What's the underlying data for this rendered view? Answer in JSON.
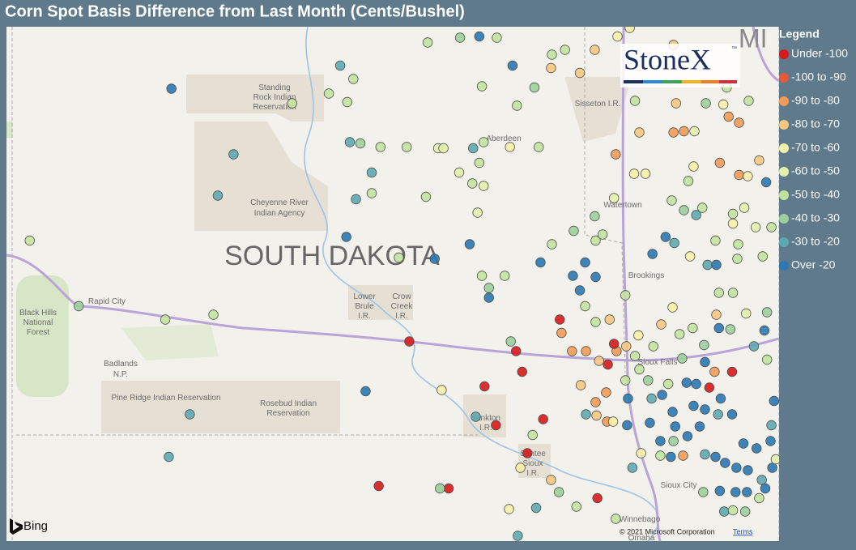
{
  "title": "Corn Spot Basis Difference from Last Month (Cents/Bushel)",
  "logo": {
    "text": "StoneX",
    "mark": "™"
  },
  "legend": {
    "title": "Legend",
    "items": [
      {
        "label": "Under -100",
        "color": "#d7191c"
      },
      {
        "label": "-100 to -90",
        "color": "#e8593a"
      },
      {
        "label": "-90 to -80",
        "color": "#f29a58"
      },
      {
        "label": "-80 to -70",
        "color": "#f7c67f"
      },
      {
        "label": "-70 to -60",
        "color": "#f8efa8"
      },
      {
        "label": "-60 to -50",
        "color": "#e3f1ac"
      },
      {
        "label": "-50 to -40",
        "color": "#c2e3a0"
      },
      {
        "label": "-40 to -30",
        "color": "#9dcf9c"
      },
      {
        "label": "-30 to -20",
        "color": "#5ea8b1"
      },
      {
        "label": "Over -20",
        "color": "#2b78b4"
      }
    ]
  },
  "map": {
    "state_label": "SOUTH DAKOTA",
    "neighbor_label": "MI",
    "labels": [
      [
        "Standing",
        "Rock Indian",
        "Reservation"
      ],
      [
        "Sisseton I.R."
      ],
      [
        "Aberdeen"
      ],
      [
        "Cheyenne River",
        "Indian Agency"
      ],
      [
        "Watertown"
      ],
      [
        "Brookings"
      ],
      [
        "Rapid City"
      ],
      [
        "Black Hills",
        "National",
        "Forest"
      ],
      [
        "Lower",
        "Brule",
        "I.R."
      ],
      [
        "Crow",
        "Creek",
        "I.R."
      ],
      [
        "Badlands",
        "N.P."
      ],
      [
        "Pine Ridge Indian Reservation"
      ],
      [
        "Rosebud Indian",
        "Reservation"
      ],
      [
        "Sioux Falls"
      ],
      [
        "Yankton",
        "I.R."
      ],
      [
        "Santee",
        "Sioux",
        "I.R."
      ],
      [
        "Sioux City"
      ],
      [
        "Winnebago"
      ],
      [
        "Omaha"
      ]
    ],
    "attribution": {
      "provider": "Bing",
      "copyright": "© 2021 Microsoft Corporation",
      "terms": "Terms"
    },
    "points": [
      [
        -102.17,
        45.77,
        9
      ],
      [
        -101.46,
        45.23,
        8
      ],
      [
        -101.64,
        44.89,
        8
      ],
      [
        -103.79,
        44.52,
        6
      ],
      [
        -103.23,
        43.98,
        7
      ],
      [
        -102.24,
        43.87,
        6
      ],
      [
        -101.69,
        43.91,
        6
      ],
      [
        -101.96,
        43.09,
        8
      ],
      [
        -102.2,
        42.74,
        8
      ],
      [
        -100.24,
        45.96,
        8
      ],
      [
        -100.09,
        45.85,
        6
      ],
      [
        -100.37,
        45.73,
        6
      ],
      [
        -100.16,
        45.66,
        6
      ],
      [
        -100.79,
        45.65,
        6
      ],
      [
        -100.13,
        45.33,
        8
      ],
      [
        -100.01,
        45.32,
        7
      ],
      [
        -99.78,
        45.29,
        6
      ],
      [
        -99.48,
        45.29,
        6
      ],
      [
        -99.88,
        45.08,
        8
      ],
      [
        -99.88,
        44.91,
        6
      ],
      [
        -100.06,
        44.86,
        8
      ],
      [
        -100.17,
        44.55,
        9
      ],
      [
        -99.57,
        44.38,
        6
      ],
      [
        -99.16,
        44.37,
        9
      ],
      [
        -99.24,
        46.15,
        6
      ],
      [
        -98.87,
        46.19,
        7
      ],
      [
        -98.65,
        46.2,
        9
      ],
      [
        -98.45,
        46.19,
        6
      ],
      [
        -98.27,
        45.96,
        9
      ],
      [
        -98.62,
        45.79,
        6
      ],
      [
        -98.22,
        45.63,
        6
      ],
      [
        -98.02,
        45.78,
        7
      ],
      [
        -99.12,
        45.28,
        5
      ],
      [
        -99.06,
        45.28,
        5
      ],
      [
        -98.72,
        45.28,
        8
      ],
      [
        -98.6,
        45.33,
        6
      ],
      [
        -98.3,
        45.29,
        4
      ],
      [
        -97.97,
        45.29,
        6
      ],
      [
        -98.65,
        45.16,
        6
      ],
      [
        -98.88,
        45.08,
        5
      ],
      [
        -98.73,
        44.99,
        6
      ],
      [
        -98.6,
        44.97,
        5
      ],
      [
        -99.26,
        44.88,
        6
      ],
      [
        -98.67,
        44.75,
        5
      ],
      [
        -98.76,
        44.49,
        9
      ],
      [
        -98.62,
        44.23,
        6
      ],
      [
        -98.36,
        44.23,
        6
      ],
      [
        -98.54,
        44.13,
        7
      ],
      [
        -98.54,
        44.05,
        9
      ],
      [
        -99.45,
        43.69,
        0
      ],
      [
        -99.95,
        43.28,
        9
      ],
      [
        -99.08,
        43.29,
        4
      ],
      [
        -98.59,
        43.32,
        0
      ],
      [
        -98.16,
        43.44,
        0
      ],
      [
        -98.23,
        43.61,
        0
      ],
      [
        -98.29,
        43.69,
        7
      ],
      [
        -98.46,
        43.0,
        0
      ],
      [
        -98.69,
        43.07,
        8
      ],
      [
        -98.04,
        42.92,
        6
      ],
      [
        -97.92,
        43.05,
        0
      ],
      [
        -98.1,
        42.77,
        0
      ],
      [
        -99.8,
        42.5,
        0
      ],
      [
        -99.0,
        42.48,
        0
      ],
      [
        -99.1,
        42.48,
        7
      ],
      [
        -98.18,
        42.65,
        4
      ],
      [
        -97.83,
        42.55,
        3
      ],
      [
        -97.74,
        42.45,
        7
      ],
      [
        -98.31,
        42.31,
        4
      ],
      [
        -98.0,
        42.32,
        8
      ],
      [
        -97.73,
        43.87,
        0
      ],
      [
        -97.71,
        43.76,
        2
      ],
      [
        -97.59,
        43.61,
        2
      ],
      [
        -97.43,
        43.61,
        2
      ],
      [
        -97.28,
        43.53,
        3
      ],
      [
        -97.18,
        43.5,
        0
      ],
      [
        -97.08,
        43.61,
        2
      ],
      [
        -96.97,
        43.65,
        3
      ],
      [
        -97.11,
        43.67,
        0
      ],
      [
        -97.49,
        43.33,
        3
      ],
      [
        -97.32,
        43.19,
        2
      ],
      [
        -97.2,
        43.27,
        2
      ],
      [
        -97.31,
        43.08,
        3
      ],
      [
        -97.19,
        43.03,
        2
      ],
      [
        -97.43,
        43.09,
        8
      ],
      [
        -97.58,
        44.23,
        9
      ],
      [
        -97.5,
        44.11,
        9
      ],
      [
        -97.32,
        44.22,
        9
      ],
      [
        -97.44,
        44.34,
        9
      ],
      [
        -97.32,
        44.52,
        6
      ],
      [
        -97.24,
        44.57,
        6
      ],
      [
        -97.57,
        44.6,
        7
      ],
      [
        -97.33,
        44.72,
        7
      ],
      [
        -97.82,
        44.49,
        6
      ],
      [
        -97.95,
        44.34,
        9
      ],
      [
        -97.44,
        43.98,
        6
      ],
      [
        -97.32,
        43.85,
        6
      ],
      [
        -97.16,
        43.87,
        3
      ],
      [
        -96.98,
        44.07,
        6
      ],
      [
        -97.11,
        44.87,
        5
      ],
      [
        -97.09,
        45.23,
        2
      ],
      [
        -96.88,
        45.07,
        4
      ],
      [
        -96.75,
        45.07,
        4
      ],
      [
        -96.82,
        45.41,
        3
      ],
      [
        -96.87,
        45.67,
        6
      ],
      [
        -97.07,
        46.2,
        4
      ],
      [
        -97.33,
        46.09,
        3
      ],
      [
        -97.5,
        45.9,
        3
      ],
      [
        -97.83,
        45.94,
        3
      ],
      [
        -97.82,
        46.05,
        6
      ],
      [
        -97.67,
        46.09,
        6
      ],
      [
        -96.93,
        46.27,
        4
      ],
      [
        -96.43,
        46.13,
        3
      ],
      [
        -96.4,
        45.65,
        3
      ],
      [
        -96.43,
        45.41,
        2
      ],
      [
        -96.31,
        45.42,
        2
      ],
      [
        -96.19,
        45.42,
        5
      ],
      [
        -95.8,
        45.54,
        2
      ],
      [
        -95.68,
        45.49,
        2
      ],
      [
        -96.06,
        45.65,
        7
      ],
      [
        -95.86,
        45.64,
        4
      ],
      [
        -95.82,
        45.78,
        6
      ],
      [
        -95.57,
        45.67,
        6
      ],
      [
        -96.2,
        45.13,
        4
      ],
      [
        -95.9,
        45.16,
        2
      ],
      [
        -95.68,
        45.06,
        2
      ],
      [
        -95.58,
        45.05,
        4
      ],
      [
        -95.45,
        45.18,
        3
      ],
      [
        -95.37,
        45.0,
        9
      ],
      [
        -96.26,
        45.01,
        6
      ],
      [
        -96.45,
        44.85,
        6
      ],
      [
        -96.31,
        44.77,
        7
      ],
      [
        -96.17,
        44.73,
        8
      ],
      [
        -96.1,
        44.79,
        6
      ],
      [
        -95.95,
        44.52,
        6
      ],
      [
        -95.75,
        44.66,
        4
      ],
      [
        -95.62,
        44.79,
        5
      ],
      [
        -95.49,
        44.63,
        5
      ],
      [
        -95.31,
        44.63,
        6
      ],
      [
        -95.41,
        44.39,
        6
      ],
      [
        -95.69,
        44.49,
        6
      ],
      [
        -95.75,
        44.74,
        6
      ],
      [
        -96.52,
        44.55,
        9
      ],
      [
        -96.42,
        44.5,
        8
      ],
      [
        -96.67,
        44.41,
        9
      ],
      [
        -96.24,
        44.39,
        4
      ],
      [
        -96.04,
        44.32,
        8
      ],
      [
        -95.94,
        44.32,
        9
      ],
      [
        -95.7,
        44.37,
        6
      ],
      [
        -95.91,
        44.09,
        6
      ],
      [
        -95.75,
        44.09,
        6
      ],
      [
        -95.6,
        43.92,
        5
      ],
      [
        -95.36,
        43.93,
        7
      ],
      [
        -95.94,
        43.91,
        3
      ],
      [
        -95.91,
        43.8,
        9
      ],
      [
        -95.78,
        43.79,
        7
      ],
      [
        -96.57,
        43.83,
        3
      ],
      [
        -96.44,
        43.97,
        4
      ],
      [
        -96.21,
        43.8,
        6
      ],
      [
        -96.08,
        43.66,
        7
      ],
      [
        -96.36,
        43.75,
        6
      ],
      [
        -96.07,
        43.52,
        9
      ],
      [
        -95.96,
        43.44,
        2
      ],
      [
        -95.76,
        43.44,
        0
      ],
      [
        -96.02,
        43.31,
        0
      ],
      [
        -96.17,
        43.34,
        9
      ],
      [
        -96.28,
        43.35,
        9
      ],
      [
        -96.56,
        43.25,
        9
      ],
      [
        -96.68,
        43.22,
        8
      ],
      [
        -96.95,
        43.22,
        9
      ],
      [
        -96.44,
        43.11,
        9
      ],
      [
        -96.2,
        43.16,
        9
      ],
      [
        -96.07,
        43.13,
        9
      ],
      [
        -95.92,
        43.09,
        8
      ],
      [
        -95.76,
        43.09,
        9
      ],
      [
        -95.89,
        43.22,
        9
      ],
      [
        -96.41,
        42.99,
        9
      ],
      [
        -96.7,
        43.02,
        9
      ],
      [
        -96.96,
        43.0,
        9
      ],
      [
        -96.58,
        42.87,
        9
      ],
      [
        -96.27,
        42.91,
        9
      ],
      [
        -96.13,
        42.99,
        9
      ],
      [
        -96.43,
        42.87,
        7
      ],
      [
        -96.8,
        42.77,
        4
      ],
      [
        -96.46,
        42.74,
        9
      ],
      [
        -96.32,
        42.75,
        2
      ],
      [
        -96.07,
        42.76,
        8
      ],
      [
        -95.95,
        42.74,
        9
      ],
      [
        -95.63,
        42.85,
        9
      ],
      [
        -95.48,
        42.81,
        9
      ],
      [
        -95.32,
        42.87,
        9
      ],
      [
        -95.84,
        42.69,
        9
      ],
      [
        -95.71,
        42.65,
        9
      ],
      [
        -95.58,
        42.63,
        9
      ],
      [
        -95.42,
        42.55,
        8
      ],
      [
        -95.3,
        42.65,
        9
      ],
      [
        -95.72,
        42.45,
        9
      ],
      [
        -95.59,
        42.45,
        9
      ],
      [
        -95.38,
        42.48,
        9
      ],
      [
        -95.9,
        42.46,
        9
      ],
      [
        -96.09,
        42.45,
        7
      ],
      [
        -95.85,
        42.29,
        8
      ],
      [
        -95.75,
        42.3,
        6
      ],
      [
        -95.61,
        42.29,
        7
      ],
      [
        -95.45,
        42.4,
        6
      ],
      [
        -96.9,
        42.65,
        8
      ],
      [
        -97.3,
        42.4,
        0
      ],
      [
        -97.09,
        42.23,
        6
      ],
      [
        -97.54,
        42.33,
        6
      ],
      [
        -98.21,
        42.09,
        8
      ],
      [
        -96.58,
        42.75,
        6
      ],
      [
        -96.83,
        43.74,
        4
      ],
      [
        -96.66,
        43.65,
        6
      ],
      [
        -96.33,
        43.55,
        7
      ],
      [
        -96.87,
        43.57,
        6
      ],
      [
        -96.82,
        43.46,
        6
      ],
      [
        -96.72,
        43.37,
        7
      ],
      [
        -96.49,
        43.34,
        6
      ],
      [
        -95.28,
        43.2,
        9
      ],
      [
        -95.31,
        43.0,
        8
      ],
      [
        -95.26,
        42.72,
        5
      ],
      [
        -95.39,
        43.78,
        9
      ],
      [
        -95.51,
        43.65,
        8
      ],
      [
        -95.36,
        43.54,
        6
      ],
      [
        -96.98,
        43.37,
        6
      ],
      [
        -97.12,
        43.03,
        4
      ]
    ]
  }
}
